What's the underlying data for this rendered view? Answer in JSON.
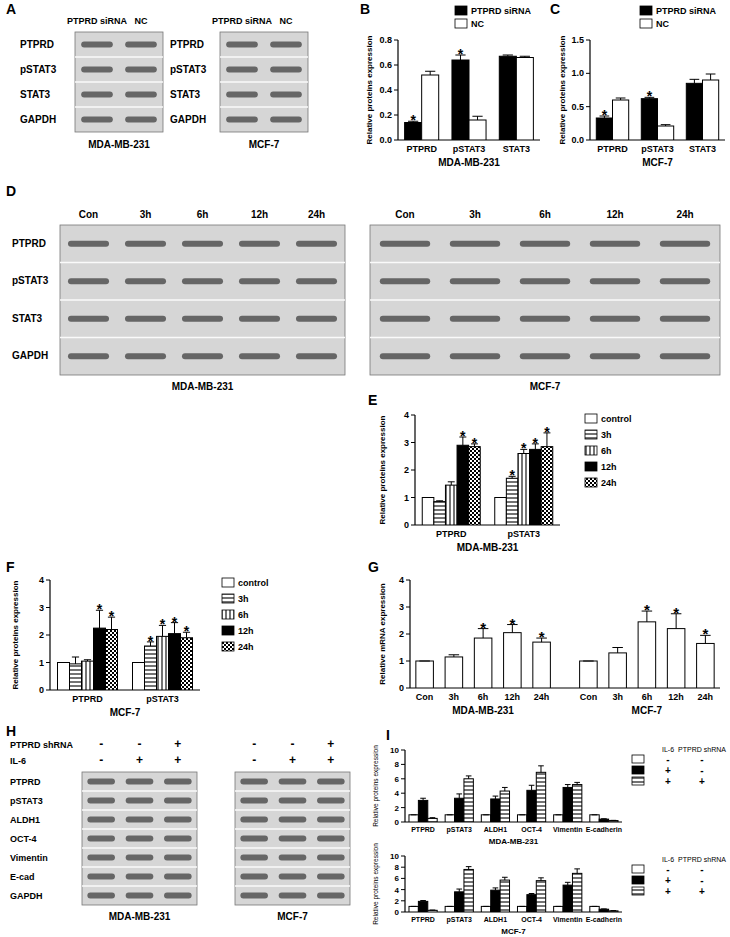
{
  "chart_data": [
    {
      "type": "bar",
      "title": "B",
      "x_label": "MDA-MB-231",
      "y_label": "Relative proteins expression",
      "categories": [
        "PTPRD",
        "pSTAT3",
        "STAT3"
      ],
      "series": [
        {
          "name": "PTPRD siRNA",
          "color": "#000000",
          "values": [
            0.14,
            0.64,
            0.67
          ],
          "errors": [
            0.01,
            0.04,
            0.01
          ],
          "annotations": [
            "*",
            "*",
            null
          ]
        },
        {
          "name": "NC",
          "color": "#ffffff",
          "values": [
            0.52,
            0.16,
            0.66
          ],
          "errors": [
            0.03,
            0.03,
            0.01
          ],
          "annotations": [
            null,
            null,
            null
          ]
        }
      ],
      "ylim": [
        0,
        0.8
      ],
      "yticks": [
        {
          "value": 0,
          "label": "0.0"
        },
        {
          "value": 0.2,
          "label": "0.2"
        },
        {
          "value": 0.4,
          "label": "0.4"
        },
        {
          "value": 0.6,
          "label": "0.6"
        },
        {
          "value": 0.8,
          "label": "0.8"
        }
      ],
      "legend": "top-right"
    },
    {
      "type": "bar",
      "title": "C",
      "x_label": "MCF-7",
      "y_label": "Relative proteins expression",
      "categories": [
        "PTPRD",
        "pSTAT3",
        "STAT3"
      ],
      "series": [
        {
          "name": "PTPRD siRNA",
          "color": "#000000",
          "values": [
            0.33,
            0.62,
            0.85
          ],
          "errors": [
            0.03,
            0.02,
            0.06
          ],
          "annotations": [
            "*",
            "*",
            null
          ]
        },
        {
          "name": "NC",
          "color": "#ffffff",
          "values": [
            0.6,
            0.21,
            0.9
          ],
          "errors": [
            0.03,
            0.02,
            0.09
          ],
          "annotations": [
            null,
            null,
            null
          ]
        }
      ],
      "ylim": [
        0,
        1.5
      ],
      "yticks": [
        {
          "value": 0,
          "label": "0.0"
        },
        {
          "value": 0.5,
          "label": "0.5"
        },
        {
          "value": 1,
          "label": "1.0"
        },
        {
          "value": 1.5,
          "label": "1.5"
        }
      ],
      "legend": "top-right"
    },
    {
      "type": "bar",
      "title": "E",
      "x_label": "MDA-MB-231",
      "y_label": "Relative proteins expression",
      "categories": [
        "PTPRD",
        "pSTAT3"
      ],
      "series": [
        {
          "name": "control",
          "color": "#ffffff",
          "values": [
            1,
            1
          ],
          "errors": [
            0,
            0
          ],
          "annotations": [
            null,
            null
          ]
        },
        {
          "name": "3h",
          "color": "#000000",
          "values": [
            0.85,
            1.7
          ],
          "errors": [
            0.03,
            0.07
          ],
          "annotations": [
            null,
            "*"
          ]
        },
        {
          "name": "6h",
          "color": "#000000",
          "values": [
            1.45,
            2.6
          ],
          "errors": [
            0.12,
            0.15
          ],
          "annotations": [
            null,
            "*"
          ]
        },
        {
          "name": "12h",
          "color": "#000000",
          "values": [
            2.9,
            2.75
          ],
          "errors": [
            0.3,
            0.2
          ],
          "annotations": [
            "*",
            "*"
          ]
        },
        {
          "name": "24h",
          "color": "#000000",
          "values": [
            2.85,
            2.85
          ],
          "errors": [
            0.1,
            0.5
          ],
          "annotations": [
            "*",
            "*"
          ]
        }
      ],
      "ylim": [
        0,
        4
      ],
      "yticks": [
        0,
        1,
        2,
        3,
        4
      ],
      "legend": "right"
    },
    {
      "type": "bar",
      "title": "F",
      "x_label": "MCF-7",
      "y_label": "Relative proteins expression",
      "categories": [
        "PTPRD",
        "pSTAT3"
      ],
      "series": [
        {
          "name": "control",
          "color": "#ffffff",
          "values": [
            1,
            1
          ],
          "errors": [
            0,
            0
          ],
          "annotations": [
            null,
            null
          ]
        },
        {
          "name": "3h",
          "color": "#000000",
          "values": [
            0.95,
            1.6
          ],
          "errors": [
            0.25,
            0.15
          ],
          "annotations": [
            null,
            "*"
          ]
        },
        {
          "name": "6h",
          "color": "#000000",
          "values": [
            1.05,
            1.95
          ],
          "errors": [
            0.05,
            0.4
          ],
          "annotations": [
            null,
            "*"
          ]
        },
        {
          "name": "12h",
          "color": "#000000",
          "values": [
            2.25,
            2.05
          ],
          "errors": [
            0.65,
            0.4
          ],
          "annotations": [
            "*",
            "*"
          ]
        },
        {
          "name": "24h",
          "color": "#000000",
          "values": [
            2.2,
            1.9
          ],
          "errors": [
            0.45,
            0.2
          ],
          "annotations": [
            "*",
            "*"
          ]
        }
      ],
      "ylim": [
        0,
        4
      ],
      "yticks": [
        0,
        1,
        2,
        3,
        4
      ],
      "legend": "right"
    },
    {
      "type": "grouped_bar",
      "title": "G",
      "y_label": "Relative mRNA expression",
      "color": "#ffffff",
      "groups": [
        {
          "label": "MDA-MB-231",
          "categories": [
            "Con",
            "3h",
            "6h",
            "12h",
            "24h"
          ],
          "values": [
            1,
            1.15,
            1.85,
            2.05,
            1.7
          ],
          "errors": [
            0,
            0.08,
            0.35,
            0.3,
            0.15
          ],
          "annotations": [
            null,
            null,
            "*",
            "*",
            "*"
          ]
        },
        {
          "label": "MCF-7",
          "categories": [
            "Con",
            "3h",
            "6h",
            "12h",
            "24h"
          ],
          "values": [
            1,
            1.3,
            2.45,
            2.2,
            1.65
          ],
          "errors": [
            0,
            0.2,
            0.4,
            0.55,
            0.3
          ],
          "annotations": [
            null,
            null,
            "*",
            "*",
            "*"
          ]
        }
      ],
      "ylim": [
        0,
        4
      ],
      "yticks": [
        0,
        1,
        2,
        3,
        4
      ]
    },
    {
      "type": "bar",
      "title": "I",
      "x_label": "MDA-MB-231",
      "y_label": "Relative proteins expression",
      "categories": [
        "PTPRD",
        "pSTAT3",
        "ALDH1",
        "OCT-4",
        "Vimentin",
        "E-cadherin"
      ],
      "legend_headers": [
        "IL-6",
        "PTPRD shRNA"
      ],
      "series": [
        {
          "conditions": [
            "-",
            "-"
          ],
          "color": "#ffffff",
          "values": [
            1,
            1,
            1,
            1,
            1,
            1
          ],
          "errors": [
            0,
            0,
            0,
            0,
            0,
            0
          ]
        },
        {
          "conditions": [
            "+",
            "-"
          ],
          "color": "#000000",
          "values": [
            3.0,
            3.3,
            3.2,
            4.4,
            4.8,
            0.4
          ],
          "errors": [
            0.3,
            0.6,
            0.4,
            0.7,
            0.4,
            0.05
          ]
        },
        {
          "conditions": [
            "+",
            "+"
          ],
          "color": "#000000",
          "values": [
            0.5,
            6.0,
            4.3,
            6.9,
            5.2,
            0.2
          ],
          "errors": [
            0.1,
            0.4,
            0.5,
            0.9,
            0.3,
            0.03
          ]
        }
      ],
      "ylim": [
        0,
        10
      ],
      "yticks": [
        0,
        2,
        4,
        6,
        8,
        10
      ],
      "legend": "right"
    },
    {
      "type": "bar",
      "x_label": "MCF-7",
      "y_label": "Relative proteins expression",
      "categories": [
        "PTPRD",
        "pSTAT3",
        "ALDH1",
        "OCT-4",
        "Vimentin",
        "E-cadherin"
      ],
      "legend_headers": [
        "IL-6",
        "PTPRD shRNA"
      ],
      "series": [
        {
          "conditions": [
            "-",
            "-"
          ],
          "color": "#ffffff",
          "values": [
            1,
            1,
            1,
            1,
            1,
            1
          ],
          "errors": [
            0,
            0,
            0,
            0,
            0,
            0
          ]
        },
        {
          "conditions": [
            "+",
            "-"
          ],
          "color": "#000000",
          "values": [
            1.9,
            3.6,
            3.9,
            3.1,
            4.8,
            0.5
          ],
          "errors": [
            0.15,
            0.5,
            0.4,
            0.2,
            0.5,
            0.05
          ]
        },
        {
          "conditions": [
            "+",
            "+"
          ],
          "color": "#000000",
          "values": [
            0.3,
            7.6,
            5.7,
            5.6,
            6.9,
            0.2
          ],
          "errors": [
            0.05,
            0.5,
            0.5,
            0.5,
            0.8,
            0.05
          ]
        }
      ],
      "ylim": [
        0,
        10
      ],
      "yticks": [
        0,
        2,
        4,
        6,
        8,
        10
      ],
      "legend": "right"
    }
  ],
  "blots": [
    {
      "title": "A",
      "rows": [
        "PTPRD",
        "pSTAT3",
        "STAT3",
        "GAPDH"
      ],
      "membranes": [
        {
          "label": "MDA-MB-231",
          "lanes": [
            "PTPRD siRNA",
            "NC"
          ]
        },
        {
          "label": "MCF-7",
          "lanes": [
            "PTPRD siRNA",
            "NC"
          ]
        }
      ]
    },
    {
      "title": "D",
      "rows": [
        "PTPRD",
        "pSTAT3",
        "STAT3",
        "GAPDH"
      ],
      "membranes": [
        {
          "label": "MDA-MB-231",
          "lanes": [
            "Con",
            "3h",
            "6h",
            "12h",
            "24h"
          ]
        },
        {
          "label": "MCF-7",
          "lanes": [
            "Con",
            "3h",
            "6h",
            "12h",
            "24h"
          ]
        }
      ]
    },
    {
      "title": "H",
      "rows": [
        "PTPRD",
        "pSTAT3",
        "ALDH1",
        "OCT-4",
        "Vimentin",
        "E-cad",
        "GAPDH"
      ],
      "conditions": [
        {
          "label": "PTPRD shRNA",
          "signs": [
            "-",
            "-",
            "+"
          ]
        },
        {
          "label": "IL-6",
          "signs": [
            "-",
            "+",
            "+"
          ]
        }
      ],
      "membranes": [
        {
          "label": "MDA-MB-231"
        },
        {
          "label": "MCF-7"
        }
      ]
    }
  ]
}
